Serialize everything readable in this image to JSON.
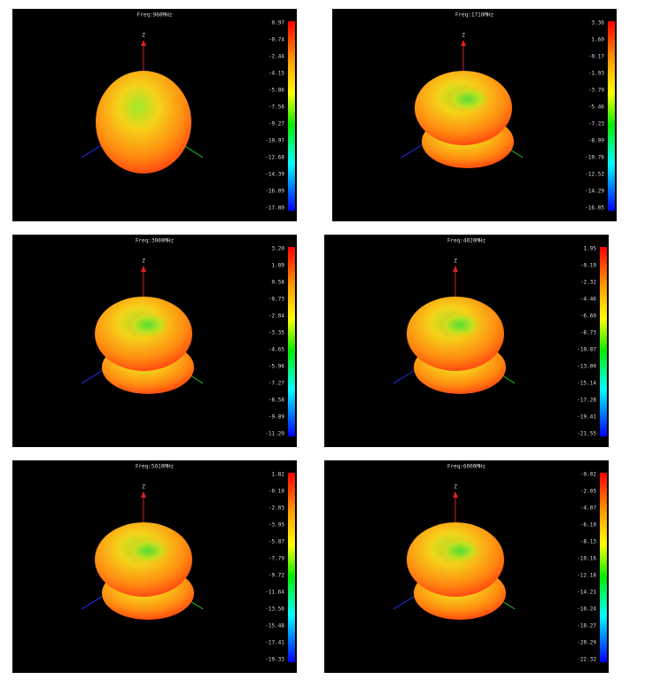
{
  "panels": [
    {
      "title": "Freq:960MHz",
      "z_label": "Z",
      "scale": [
        "0.97",
        "-0.74",
        "-2.44",
        "-4.15",
        "-5.86",
        "-7.56",
        "-9.27",
        "-10.97",
        "-12.68",
        "-14.39",
        "-16.09",
        "-17.80"
      ]
    },
    {
      "title": "Freq:1710MHz",
      "z_label": "Z",
      "scale": [
        "3.36",
        "1.60",
        "-0.17",
        "-1.93",
        "-3.70",
        "-5.46",
        "-7.23",
        "-8.99",
        "-10.76",
        "-12.52",
        "-14.29",
        "-16.05"
      ]
    },
    {
      "title": "Freq:3000MHz",
      "z_label": "Z",
      "scale": [
        "3.20",
        "1.89",
        "0.58",
        "-0.73",
        "-2.04",
        "-3.35",
        "-4.65",
        "-5.96",
        "-7.27",
        "-8.58",
        "-9.89",
        "-11.20"
      ]
    },
    {
      "title": "Freq:4020MHz",
      "z_label": "Z",
      "scale": [
        "1.95",
        "-0.19",
        "-2.32",
        "-4.46",
        "-6.60",
        "-8.73",
        "-10.87",
        "-13.00",
        "-15.14",
        "-17.28",
        "-19.41",
        "-21.55"
      ]
    },
    {
      "title": "Freq:5010MHz",
      "z_label": "Z",
      "scale": [
        "1.82",
        "-0.10",
        "-2.03",
        "-3.95",
        "-5.87",
        "-7.79",
        "-9.72",
        "-11.64",
        "-13.56",
        "-15.48",
        "-17.41",
        "-19.33"
      ]
    },
    {
      "title": "Freq:6000MHz",
      "z_label": "Z",
      "scale": [
        "-0.02",
        "-2.05",
        "-4.07",
        "-6.10",
        "-8.13",
        "-10.16",
        "-12.18",
        "-14.21",
        "-16.24",
        "-18.27",
        "-20.29",
        "-22.32"
      ]
    }
  ]
}
